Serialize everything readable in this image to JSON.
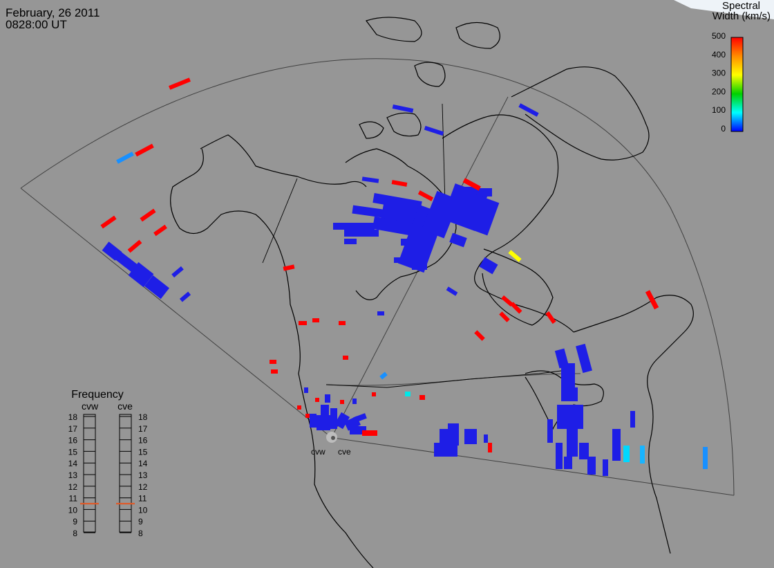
{
  "header": {
    "date": "February, 26 2011",
    "time": "0828:00 UT"
  },
  "colorbar": {
    "title_line1": "Spectral",
    "title_line2": "Width (km/s)",
    "ticks": [
      "500",
      "400",
      "300",
      "200",
      "100",
      "0"
    ],
    "stops": [
      "#ff0000",
      "#ff8c00",
      "#ffff00",
      "#00d000",
      "#00ffff",
      "#0000ff"
    ]
  },
  "frequency_panel": {
    "title": "Frequency",
    "radars": [
      "cvw",
      "cve"
    ],
    "ticks": [
      "18",
      "17",
      "16",
      "15",
      "14",
      "13",
      "12",
      "11",
      "10",
      "9",
      "8"
    ],
    "cvw_value_mhz": 10.5,
    "cve_value_mhz": 10.5,
    "marker_color": "#e05a28"
  },
  "radar_sites": {
    "cvw_label": "cvw",
    "cve_label": "cve"
  },
  "colors": {
    "background": "#969696",
    "low_width": "#1e1ee6",
    "high_width": "#ff0000",
    "mid_cyan": "#18b4ff",
    "yellow": "#ffff00"
  }
}
